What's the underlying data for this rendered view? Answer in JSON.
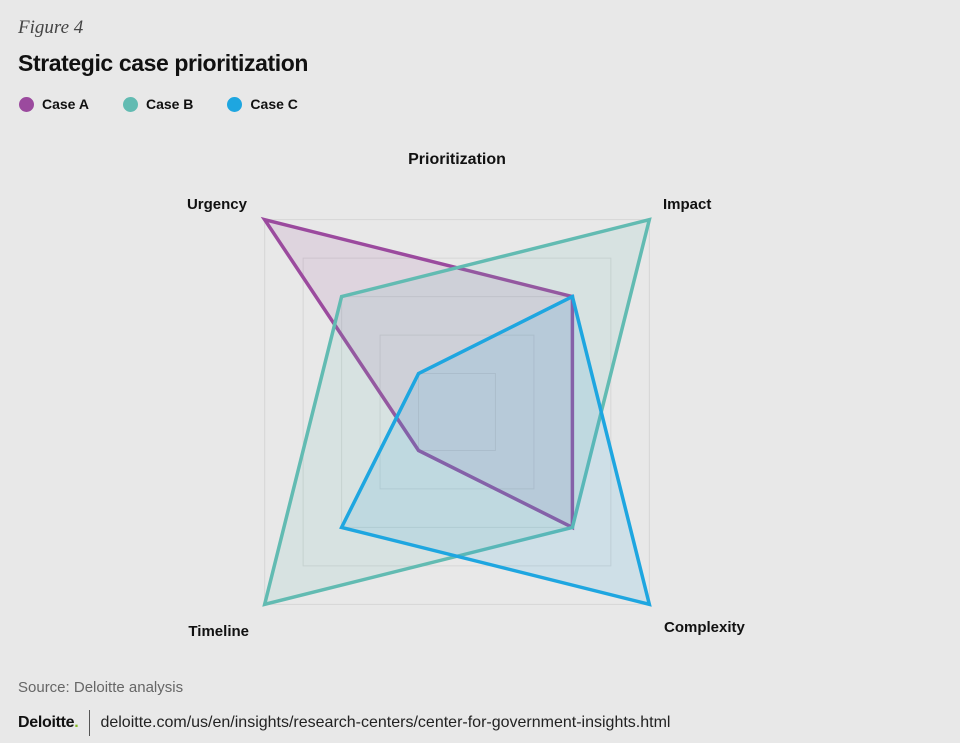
{
  "figure_label": "Figure 4",
  "title": "Strategic case prioritization",
  "legend": [
    {
      "label": "Case A",
      "color": "#9b4a9e"
    },
    {
      "label": "Case B",
      "color": "#62bbb2"
    },
    {
      "label": "Case C",
      "color": "#1ea6e0"
    }
  ],
  "chart_data": {
    "type": "radar",
    "title": "Prioritization",
    "axes": [
      "Urgency",
      "Impact",
      "Complexity",
      "Timeline"
    ],
    "range": [
      0,
      5
    ],
    "grid_levels": [
      1,
      2,
      3,
      4,
      5
    ],
    "series": [
      {
        "name": "Case A",
        "color": "#9b4a9e",
        "values": [
          5,
          3,
          3,
          1
        ]
      },
      {
        "name": "Case B",
        "color": "#62bbb2",
        "values": [
          3,
          5,
          3,
          5
        ]
      },
      {
        "name": "Case C",
        "color": "#1ea6e0",
        "values": [
          1,
          3,
          5,
          3
        ]
      }
    ]
  },
  "source": "Source: Deloitte analysis",
  "footer": {
    "brand": "Deloitte",
    "brand_dot": ".",
    "url": "deloitte.com/us/en/insights/research-centers/center-for-government-insights.html"
  }
}
